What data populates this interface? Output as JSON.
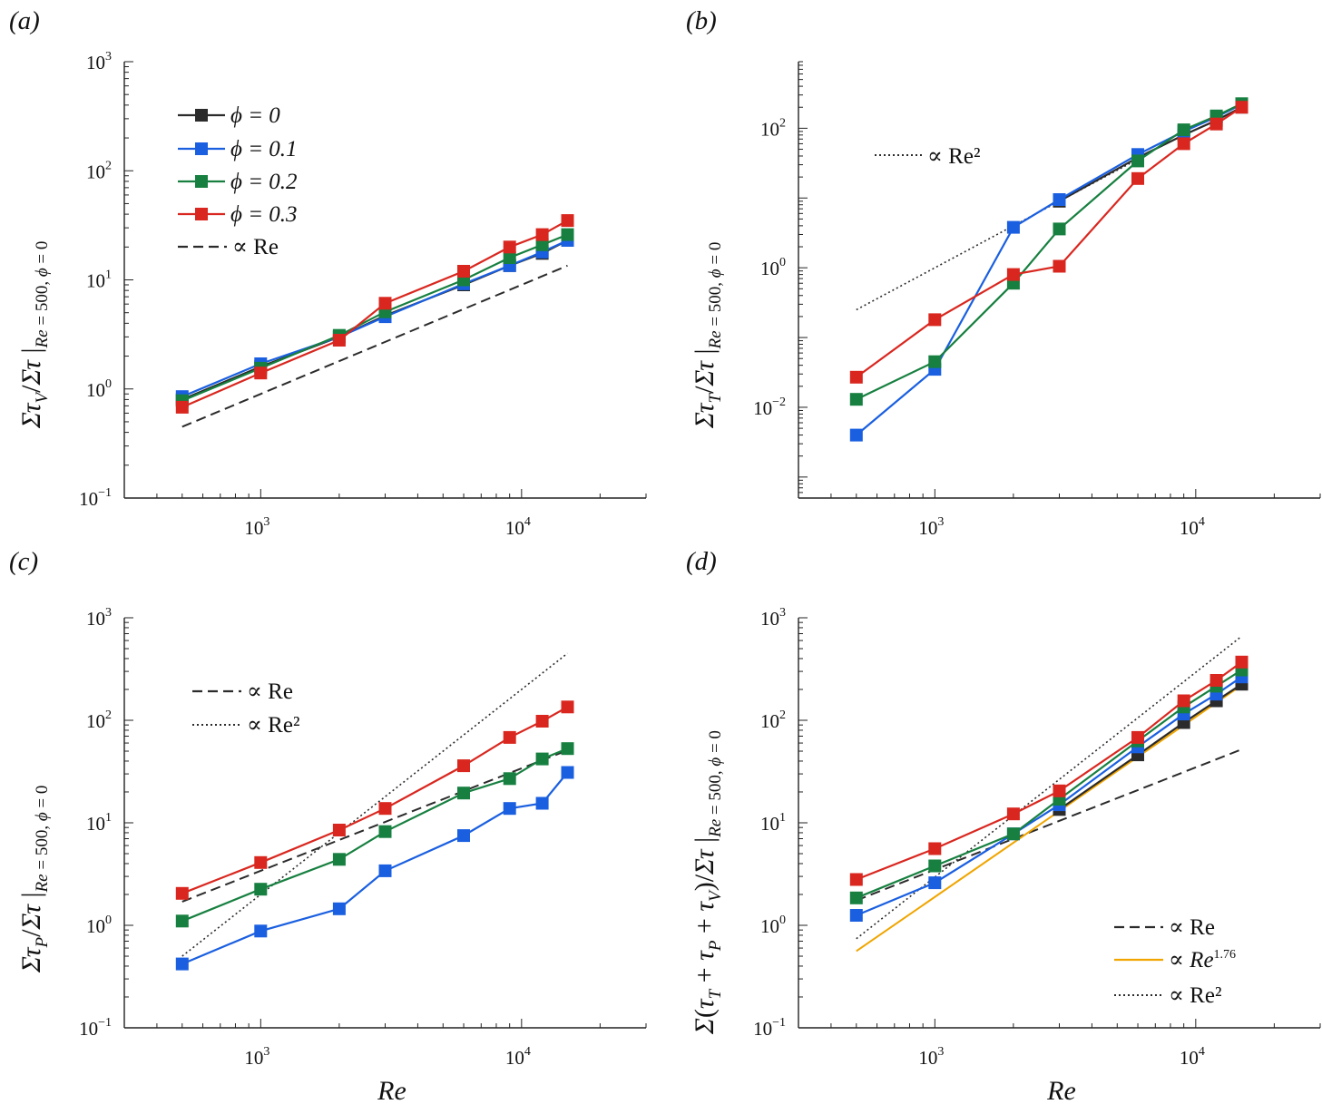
{
  "figure": {
    "xlabel": "Re",
    "subscript_condition": "Re = 500, ϕ = 0"
  },
  "colors": {
    "phi0": "#2b2b2b",
    "phi01": "#1a5fe0",
    "phi02": "#178040",
    "phi03": "#d9271f",
    "ref": "#2b2b2b",
    "fit": "#f0a500"
  },
  "chart_data": [
    {
      "type": "line",
      "panel": "(a)",
      "xscale": "log",
      "yscale": "log",
      "xlim": [
        300,
        30000
      ],
      "ylim": [
        0.1,
        1000
      ],
      "xticks": [
        1000,
        10000
      ],
      "yticks": [
        0.1,
        1,
        10,
        100,
        1000
      ],
      "x": [
        500,
        1000,
        2000,
        3000,
        6000,
        9000,
        12000,
        15000
      ],
      "ylabel": "Στ_V/Στ |Re = 500, ϕ = 0",
      "series": [
        {
          "name": "ϕ = 0",
          "color": "#2b2b2b",
          "values": [
            0.8,
            1.6,
            3.0,
            4.7,
            9.0,
            13.5,
            17.5,
            23
          ]
        },
        {
          "name": "ϕ = 0.1",
          "color": "#1a5fe0",
          "values": [
            0.85,
            1.7,
            3.0,
            4.6,
            9.2,
            13.5,
            18,
            23
          ]
        },
        {
          "name": "ϕ = 0.2",
          "color": "#178040",
          "values": [
            0.78,
            1.55,
            3.1,
            5.1,
            10,
            16,
            21,
            26
          ]
        },
        {
          "name": "ϕ = 0.3",
          "color": "#d9271f",
          "values": [
            0.68,
            1.4,
            2.8,
            6.1,
            12,
            20,
            26,
            35
          ]
        }
      ],
      "refs": [
        {
          "name": "∝ Re",
          "style": "dashed",
          "color": "#2b2b2b",
          "x": [
            500,
            15000
          ],
          "y": [
            0.45,
            13.5
          ]
        }
      ],
      "legend": [
        "ϕ = 0",
        "ϕ = 0.1",
        "ϕ = 0.2",
        "ϕ = 0.3",
        "∝ Re"
      ],
      "legend_position": "top-left"
    },
    {
      "type": "line",
      "panel": "(b)",
      "xscale": "log",
      "yscale": "log",
      "xlim": [
        300,
        30000
      ],
      "ylim": [
        0.0005,
        900
      ],
      "xticks": [
        1000,
        10000
      ],
      "yticks": [
        0.01,
        1,
        100
      ],
      "x": [
        500,
        1000,
        2000,
        3000,
        6000,
        9000,
        12000,
        15000
      ],
      "ylabel": "Στ_T/Στ |Re = 500, ϕ = 0",
      "series": [
        {
          "name": "ϕ = 0",
          "color": "#2b2b2b",
          "values": [
            null,
            null,
            null,
            9,
            38,
            80,
            130,
            200
          ]
        },
        {
          "name": "ϕ = 0.1",
          "color": "#1a5fe0",
          "values": [
            0.004,
            0.035,
            3.8,
            9.5,
            42,
            90,
            145,
            220
          ]
        },
        {
          "name": "ϕ = 0.2",
          "color": "#178040",
          "values": [
            0.013,
            0.045,
            0.6,
            3.6,
            34,
            95,
            150,
            225
          ]
        },
        {
          "name": "ϕ = 0.3",
          "color": "#d9271f",
          "values": [
            0.027,
            0.18,
            0.8,
            1.05,
            19,
            60,
            115,
            200
          ]
        }
      ],
      "refs": [
        {
          "name": "∝ Re²",
          "style": "dotted",
          "color": "#2b2b2b",
          "x": [
            500,
            6000
          ],
          "y": [
            0.25,
            36
          ]
        }
      ],
      "legend": [
        "∝ Re²"
      ],
      "legend_position": "top-left"
    },
    {
      "type": "line",
      "panel": "(c)",
      "xscale": "log",
      "yscale": "log",
      "xlim": [
        300,
        30000
      ],
      "ylim": [
        0.1,
        1000
      ],
      "xticks": [
        1000,
        10000
      ],
      "yticks": [
        0.1,
        1,
        10,
        100,
        1000
      ],
      "x": [
        500,
        1000,
        2000,
        3000,
        6000,
        9000,
        12000,
        15000
      ],
      "ylabel": "Στ_P/Στ |Re = 500, ϕ = 0",
      "series": [
        {
          "name": "ϕ = 0.1",
          "color": "#1a5fe0",
          "values": [
            0.42,
            0.88,
            1.45,
            3.4,
            7.5,
            13.8,
            15.5,
            31
          ]
        },
        {
          "name": "ϕ = 0.2",
          "color": "#178040",
          "values": [
            1.1,
            2.25,
            4.4,
            8.2,
            19.5,
            27,
            42,
            53
          ]
        },
        {
          "name": "ϕ = 0.3",
          "color": "#d9271f",
          "values": [
            2.05,
            4.1,
            8.5,
            13.8,
            36,
            68,
            98,
            135
          ]
        }
      ],
      "refs": [
        {
          "name": "∝ Re",
          "style": "dashed",
          "color": "#2b2b2b",
          "x": [
            500,
            15000
          ],
          "y": [
            1.7,
            51
          ]
        },
        {
          "name": "∝ Re²",
          "style": "dotted",
          "color": "#2b2b2b",
          "x": [
            500,
            15000
          ],
          "y": [
            0.5,
            450
          ]
        }
      ],
      "legend": [
        "∝ Re",
        "∝ Re²"
      ],
      "legend_position": "top-left"
    },
    {
      "type": "line",
      "panel": "(d)",
      "xscale": "log",
      "yscale": "log",
      "xlim": [
        300,
        30000
      ],
      "ylim": [
        0.1,
        1000
      ],
      "xticks": [
        1000,
        10000
      ],
      "yticks": [
        0.1,
        1,
        10,
        100,
        1000
      ],
      "x": [
        500,
        1000,
        2000,
        3000,
        6000,
        9000,
        12000,
        15000
      ],
      "ylabel": "Σ(τ_T + τ_P + τ_V)/Στ |Re = 500, ϕ = 0",
      "series": [
        {
          "name": "ϕ = 0",
          "color": "#2b2b2b",
          "values": [
            null,
            null,
            null,
            13.5,
            46,
            95,
            155,
            225
          ]
        },
        {
          "name": "ϕ = 0.1",
          "color": "#1a5fe0",
          "values": [
            1.25,
            2.6,
            7.8,
            15,
            55,
            115,
            180,
            265
          ]
        },
        {
          "name": "ϕ = 0.2",
          "color": "#178040",
          "values": [
            1.85,
            3.8,
            7.8,
            17,
            63,
            135,
            215,
            310
          ]
        },
        {
          "name": "ϕ = 0.3",
          "color": "#d9271f",
          "values": [
            2.8,
            5.6,
            12.2,
            20.5,
            68,
            155,
            245,
            370
          ]
        }
      ],
      "refs": [
        {
          "name": "∝ Re",
          "style": "dashed",
          "color": "#2b2b2b",
          "x": [
            500,
            15000
          ],
          "y": [
            1.75,
            52
          ]
        },
        {
          "name": "∝ Re^1.76",
          "style": "solid",
          "color": "#f0a500",
          "x": [
            500,
            15000
          ],
          "y": [
            0.56,
            220
          ]
        },
        {
          "name": "∝ Re²",
          "style": "dotted",
          "color": "#2b2b2b",
          "x": [
            500,
            15000
          ],
          "y": [
            0.74,
            660
          ]
        }
      ],
      "legend": [
        "∝ Re",
        "∝ Re^1.76",
        "∝ Re²"
      ],
      "legend_position": "bottom-right"
    }
  ]
}
